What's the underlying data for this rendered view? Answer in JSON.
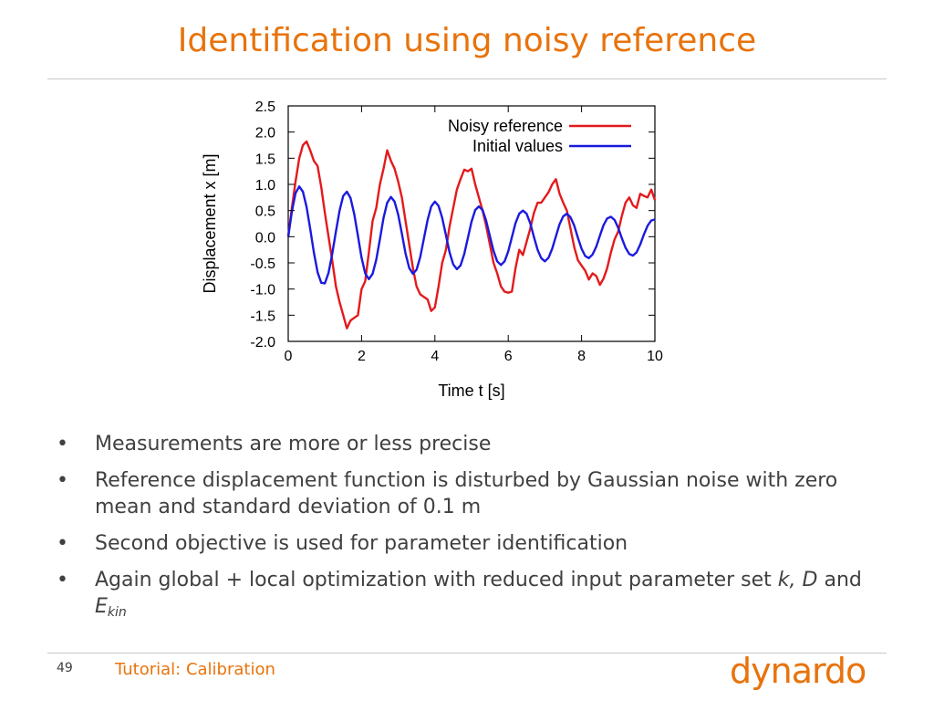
{
  "slide": {
    "title": "Identification using noisy reference",
    "bullets": [
      {
        "text": "Measurements are more or less precise"
      },
      {
        "text": "Reference displacement function is disturbed by Gaussian noise with zero mean and standard deviation of 0.1 m"
      },
      {
        "text": "Second objective is used for parameter identification"
      },
      {
        "prefix": "Again global + local optimization with reduced input parameter set ",
        "k": "k,",
        "d": "D",
        "and": " and ",
        "e": "E",
        "e_sub": "kin"
      }
    ],
    "bullet_glyph": "•"
  },
  "footer": {
    "page_number": "49",
    "title": "Tutorial: Calibration",
    "logo_text": "dynardo",
    "accent_color": "#e8730c"
  },
  "chart_data": {
    "type": "line",
    "xlabel": "Time t [s]",
    "ylabel": "Displacement x [m]",
    "xlim": [
      0,
      10
    ],
    "ylim": [
      -2.0,
      2.5
    ],
    "xticks": [
      0,
      2,
      4,
      6,
      8,
      10
    ],
    "yticks": [
      -2.0,
      -1.5,
      -1.0,
      -0.5,
      0.0,
      0.5,
      1.0,
      1.5,
      2.0,
      2.5
    ],
    "xtick_labels": [
      "0",
      "2",
      "4",
      "6",
      "8",
      "10"
    ],
    "ytick_labels": [
      "-2.0",
      "-1.5",
      "-1.0",
      "-0.5",
      "0.0",
      "0.5",
      "1.0",
      "1.5",
      "2.0",
      "2.5"
    ],
    "grid": false,
    "legend_position": "top-right",
    "series": [
      {
        "name": "Noisy reference",
        "color": "#e41a1c",
        "x": [
          0,
          0.1,
          0.2,
          0.3,
          0.4,
          0.5,
          0.6,
          0.7,
          0.8,
          0.9,
          1.0,
          1.1,
          1.2,
          1.3,
          1.4,
          1.5,
          1.6,
          1.7,
          1.8,
          1.9,
          2.0,
          2.1,
          2.2,
          2.3,
          2.4,
          2.5,
          2.6,
          2.7,
          2.8,
          2.9,
          3.0,
          3.1,
          3.2,
          3.3,
          3.4,
          3.5,
          3.6,
          3.7,
          3.8,
          3.9,
          4.0,
          4.1,
          4.2,
          4.3,
          4.4,
          4.5,
          4.6,
          4.7,
          4.8,
          4.9,
          5.0,
          5.1,
          5.2,
          5.3,
          5.4,
          5.5,
          5.6,
          5.7,
          5.8,
          5.9,
          6.0,
          6.1,
          6.2,
          6.3,
          6.4,
          6.5,
          6.6,
          6.7,
          6.8,
          6.9,
          7.0,
          7.1,
          7.2,
          7.3,
          7.4,
          7.5,
          7.6,
          7.7,
          7.8,
          7.9,
          8.0,
          8.1,
          8.2,
          8.3,
          8.4,
          8.5,
          8.6,
          8.7,
          8.8,
          8.9,
          9.0,
          9.1,
          9.2,
          9.3,
          9.4,
          9.5,
          9.6,
          9.7,
          9.8,
          9.9,
          10.0
        ],
        "y": [
          0.0,
          0.55,
          1.05,
          1.5,
          1.75,
          1.82,
          1.65,
          1.45,
          1.35,
          0.95,
          0.45,
          0.0,
          -0.45,
          -0.95,
          -1.25,
          -1.5,
          -1.75,
          -1.6,
          -1.55,
          -1.5,
          -1.0,
          -0.85,
          -0.3,
          0.3,
          0.55,
          1.0,
          1.3,
          1.65,
          1.45,
          1.3,
          1.05,
          0.75,
          0.3,
          -0.15,
          -0.6,
          -0.95,
          -1.1,
          -1.15,
          -1.2,
          -1.42,
          -1.35,
          -0.95,
          -0.5,
          -0.25,
          0.2,
          0.55,
          0.9,
          1.1,
          1.28,
          1.25,
          1.3,
          1.0,
          0.75,
          0.5,
          0.2,
          -0.15,
          -0.5,
          -0.7,
          -0.95,
          -1.05,
          -1.07,
          -1.05,
          -0.6,
          -0.25,
          -0.35,
          -0.1,
          0.15,
          0.45,
          0.65,
          0.65,
          0.75,
          0.85,
          1.0,
          1.1,
          0.82,
          0.65,
          0.5,
          0.15,
          -0.2,
          -0.45,
          -0.55,
          -0.65,
          -0.82,
          -0.7,
          -0.75,
          -0.92,
          -0.8,
          -0.6,
          -0.3,
          -0.05,
          0.1,
          0.4,
          0.65,
          0.75,
          0.6,
          0.55,
          0.82,
          0.78,
          0.75,
          0.9,
          0.7
        ]
      },
      {
        "name": "Initial values",
        "color": "#1a1adf",
        "x": [
          0,
          0.1,
          0.2,
          0.3,
          0.4,
          0.5,
          0.6,
          0.7,
          0.8,
          0.9,
          1.0,
          1.1,
          1.2,
          1.3,
          1.4,
          1.5,
          1.6,
          1.7,
          1.8,
          1.9,
          2.0,
          2.1,
          2.2,
          2.3,
          2.4,
          2.5,
          2.6,
          2.7,
          2.8,
          2.9,
          3.0,
          3.1,
          3.2,
          3.3,
          3.4,
          3.5,
          3.6,
          3.7,
          3.8,
          3.9,
          4.0,
          4.1,
          4.2,
          4.3,
          4.4,
          4.5,
          4.6,
          4.7,
          4.8,
          4.9,
          5.0,
          5.1,
          5.2,
          5.3,
          5.4,
          5.5,
          5.6,
          5.7,
          5.8,
          5.9,
          6.0,
          6.1,
          6.2,
          6.3,
          6.4,
          6.5,
          6.6,
          6.7,
          6.8,
          6.9,
          7.0,
          7.1,
          7.2,
          7.3,
          7.4,
          7.5,
          7.6,
          7.7,
          7.8,
          7.9,
          8.0,
          8.1,
          8.2,
          8.3,
          8.4,
          8.5,
          8.6,
          8.7,
          8.8,
          8.9,
          9.0,
          9.1,
          9.2,
          9.3,
          9.4,
          9.5,
          9.6,
          9.7,
          9.8,
          9.9,
          10.0
        ],
        "y": [
          0.0,
          0.48,
          0.83,
          0.96,
          0.86,
          0.57,
          0.15,
          -0.3,
          -0.68,
          -0.88,
          -0.89,
          -0.69,
          -0.33,
          0.1,
          0.5,
          0.78,
          0.86,
          0.74,
          0.43,
          0.02,
          -0.4,
          -0.7,
          -0.81,
          -0.71,
          -0.44,
          -0.05,
          0.36,
          0.65,
          0.76,
          0.67,
          0.42,
          0.06,
          -0.32,
          -0.6,
          -0.71,
          -0.63,
          -0.39,
          -0.04,
          0.32,
          0.58,
          0.67,
          0.59,
          0.36,
          0.03,
          -0.3,
          -0.53,
          -0.62,
          -0.55,
          -0.33,
          -0.02,
          0.29,
          0.51,
          0.58,
          0.51,
          0.3,
          0.01,
          -0.27,
          -0.47,
          -0.54,
          -0.47,
          -0.28,
          -0.01,
          0.26,
          0.44,
          0.5,
          0.44,
          0.26,
          0.0,
          -0.25,
          -0.41,
          -0.47,
          -0.4,
          -0.23,
          0.01,
          0.24,
          0.39,
          0.44,
          0.37,
          0.21,
          -0.02,
          -0.23,
          -0.37,
          -0.41,
          -0.34,
          -0.19,
          0.02,
          0.22,
          0.35,
          0.38,
          0.32,
          0.17,
          -0.03,
          -0.21,
          -0.33,
          -0.36,
          -0.3,
          -0.15,
          0.04,
          0.21,
          0.31,
          0.33
        ]
      }
    ]
  }
}
